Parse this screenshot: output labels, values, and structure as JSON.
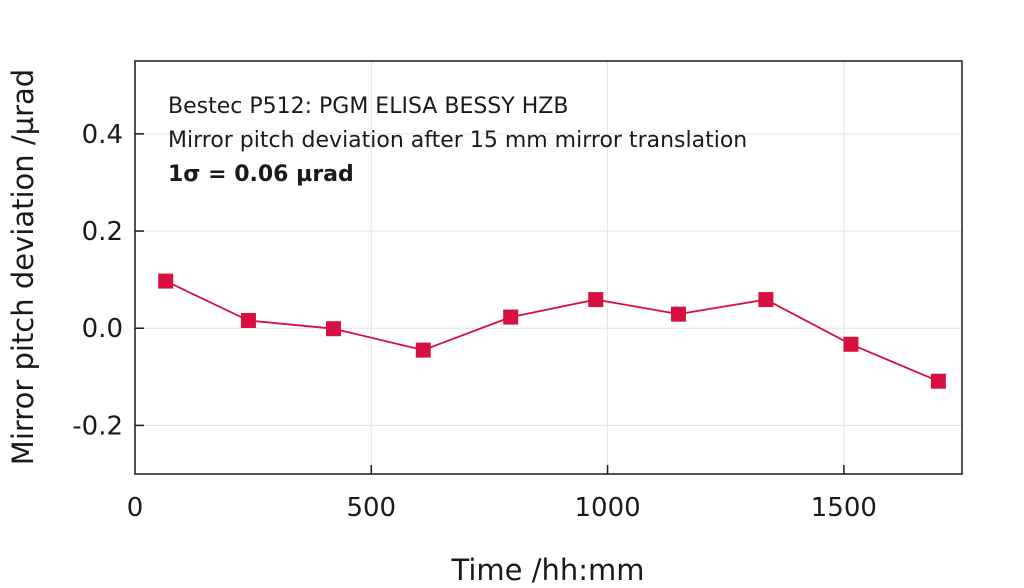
{
  "chart_data": {
    "type": "line",
    "xlabel": "Time /hh:mm",
    "ylabel": "Mirror pitch deviation /µrad",
    "xlim": [
      0,
      1750
    ],
    "ylim": [
      -0.3,
      0.55
    ],
    "xticks": [
      0,
      500,
      1000,
      1500
    ],
    "xtick_labels": [
      "0",
      "500",
      "1000",
      "1500"
    ],
    "yticks": [
      -0.2,
      0.0,
      0.2,
      0.4
    ],
    "ytick_labels": [
      "-0.2",
      "0.0",
      "0.2",
      "0.4"
    ],
    "grid": true,
    "annotations": [
      "Bestec P512: PGM ELISA BESSY HZB",
      "Mirror pitch deviation after 15 mm mirror translation",
      "1σ = 0.06 µrad"
    ],
    "series": [
      {
        "color": "#d8103f",
        "marker": "square",
        "x": [
          65,
          240,
          420,
          610,
          795,
          975,
          1150,
          1335,
          1515,
          1700
        ],
        "y": [
          0.097,
          0.016,
          -0.001,
          -0.045,
          0.023,
          0.059,
          0.029,
          0.059,
          -0.033,
          -0.109
        ]
      }
    ]
  }
}
